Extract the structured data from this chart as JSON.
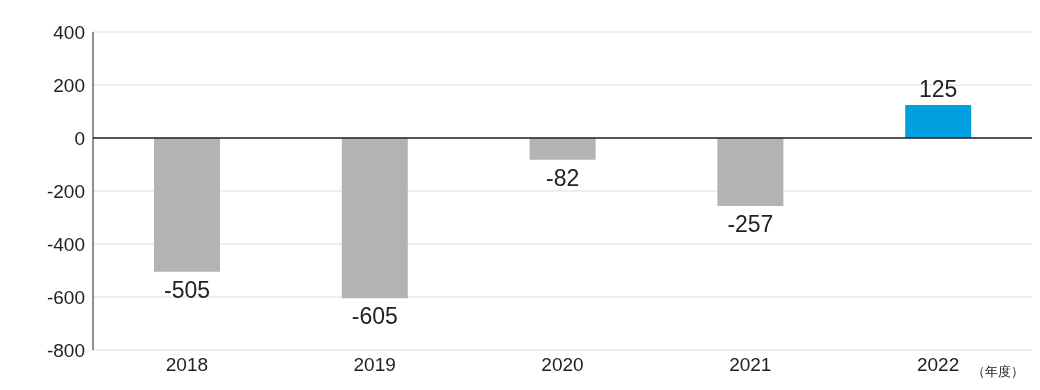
{
  "chart_data": {
    "type": "bar",
    "categories": [
      "2018",
      "2019",
      "2020",
      "2021",
      "2022"
    ],
    "values": [
      -505,
      -605,
      -82,
      -257,
      125
    ],
    "colors": [
      "#b3b3b3",
      "#b3b3b3",
      "#b3b3b3",
      "#b3b3b3",
      "#009fe0"
    ],
    "xlabel": "（年度）",
    "ylim": [
      -800,
      400
    ],
    "yticks": [
      -800,
      -600,
      -400,
      -200,
      0,
      200,
      400
    ],
    "grid": "y",
    "data_labels": true,
    "legend": false,
    "ref_lines": [
      {
        "axis": "y",
        "value": 0,
        "color": "#222222"
      }
    ]
  }
}
